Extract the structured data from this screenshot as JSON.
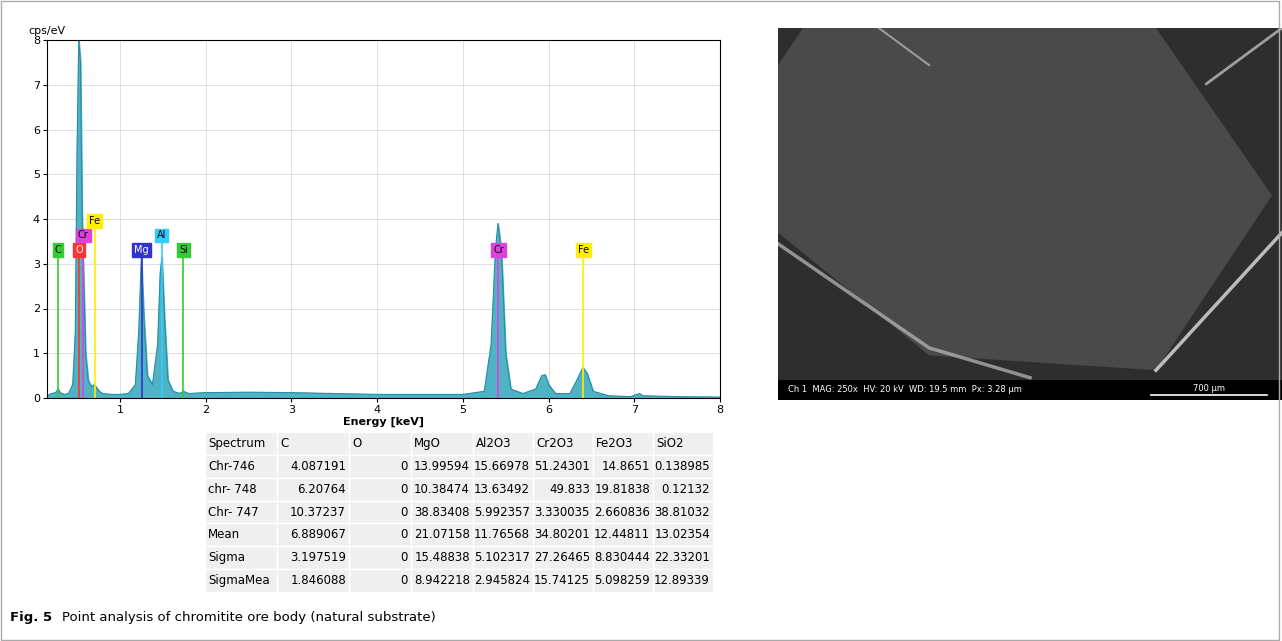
{
  "chart_data": {
    "type": "area",
    "xlabel": "Energy [keV]",
    "ylabel": "cps/eV",
    "x": [
      0.15,
      0.2,
      0.25,
      0.28,
      0.3,
      0.35,
      0.4,
      0.45,
      0.48,
      0.5,
      0.52,
      0.54,
      0.56,
      0.58,
      0.6,
      0.63,
      0.67,
      0.7,
      0.72,
      0.76,
      0.8,
      0.9,
      1.0,
      1.1,
      1.18,
      1.22,
      1.25,
      1.28,
      1.32,
      1.38,
      1.44,
      1.47,
      1.49,
      1.52,
      1.56,
      1.62,
      1.7,
      1.74,
      1.8,
      2.0,
      2.5,
      3.0,
      3.5,
      4.0,
      4.5,
      5.0,
      5.25,
      5.33,
      5.38,
      5.41,
      5.45,
      5.5,
      5.56,
      5.7,
      5.85,
      5.92,
      5.96,
      6.0,
      6.08,
      6.25,
      6.33,
      6.4,
      6.45,
      6.52,
      6.7,
      6.95,
      7.03,
      7.06,
      7.1,
      7.5,
      8.0
    ],
    "values": [
      0.05,
      0.1,
      0.12,
      0.2,
      0.12,
      0.08,
      0.1,
      0.3,
      1.5,
      5.5,
      8.0,
      7.5,
      4.0,
      2.5,
      1.0,
      0.4,
      0.25,
      0.3,
      0.25,
      0.15,
      0.1,
      0.08,
      0.08,
      0.1,
      0.3,
      1.5,
      3.15,
      1.8,
      0.5,
      0.3,
      1.2,
      2.8,
      3.15,
      1.8,
      0.4,
      0.15,
      0.1,
      0.15,
      0.1,
      0.12,
      0.13,
      0.12,
      0.1,
      0.08,
      0.08,
      0.08,
      0.15,
      1.2,
      3.3,
      3.9,
      3.3,
      1.0,
      0.2,
      0.1,
      0.2,
      0.5,
      0.52,
      0.3,
      0.1,
      0.1,
      0.4,
      0.68,
      0.55,
      0.15,
      0.05,
      0.03,
      0.08,
      0.1,
      0.05,
      0.03,
      0.02
    ],
    "color": "#4fb3c5",
    "xlim": [
      0.15,
      8
    ],
    "ylim": [
      0,
      8
    ],
    "xticks": [
      1,
      2,
      3,
      4,
      5,
      6,
      7,
      8
    ],
    "yticks": [
      0,
      1,
      2,
      3,
      4,
      5,
      6,
      7,
      8
    ],
    "grid": true,
    "element_lines": [
      {
        "label": "C",
        "energy": 0.277,
        "color": "#33cc33"
      },
      {
        "label": "O",
        "energy": 0.525,
        "color": "#ff3333"
      },
      {
        "label": "Cr",
        "energy": 0.573,
        "color": "#e040e0"
      },
      {
        "label": "Fe",
        "energy": 0.705,
        "color": "#ffee00"
      },
      {
        "label": "Mg",
        "energy": 1.254,
        "color": "#3333cc"
      },
      {
        "label": "Al",
        "energy": 1.487,
        "color": "#33ccff"
      },
      {
        "label": "Si",
        "energy": 1.74,
        "color": "#33cc33"
      },
      {
        "label": "Cr",
        "energy": 5.415,
        "color": "#e040e0"
      },
      {
        "label": "Fe",
        "energy": 6.404,
        "color": "#ffee00"
      }
    ]
  },
  "image": {
    "info": "Ch 1  MAG: 250x  HV: 20 kV  WD: 19.5 mm  Px: 3.28 µm",
    "scale_bar": "700 µm"
  },
  "table": {
    "columns": [
      "Spectrum",
      "C",
      "O",
      "MgO",
      "Al2O3",
      "Cr2O3",
      "Fe2O3",
      "SiO2"
    ],
    "rows": [
      [
        "Chr-746",
        4.087191,
        0,
        13.99594,
        15.66978,
        51.24301,
        14.8651,
        0.138985
      ],
      [
        "chr- 748",
        6.20764,
        0,
        10.38474,
        13.63492,
        49.833,
        19.81838,
        0.12132
      ],
      [
        "Chr- 747",
        10.37237,
        0,
        38.83408,
        5.992357,
        3.330035,
        2.660836,
        38.81032
      ],
      [
        "Mean",
        6.889067,
        0,
        21.07158,
        11.76568,
        34.80201,
        12.44811,
        13.02354
      ],
      [
        "Sigma",
        3.197519,
        0,
        15.48838,
        5.102317,
        27.26465,
        8.830444,
        22.33201
      ],
      [
        "SigmaMea",
        1.846088,
        0,
        8.942218,
        2.945824,
        15.74125,
        5.098259,
        12.89339
      ]
    ]
  },
  "caption": {
    "label": "Fig. 5",
    "text": "Point analysis of chromitite ore body (natural substrate)"
  }
}
